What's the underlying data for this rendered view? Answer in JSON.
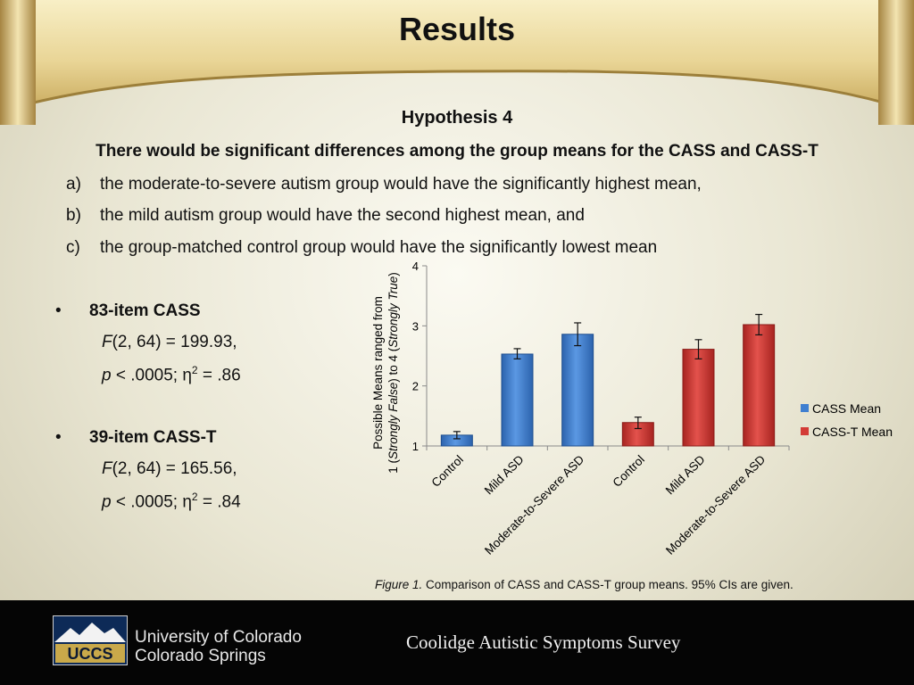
{
  "slide": {
    "title": "Results",
    "hypothesis_title": "Hypothesis 4",
    "statement": "There would be significant differences among the group means for the CASS and CASS-T",
    "items": [
      {
        "marker": "a)",
        "text": "the moderate-to-severe autism group would have the significantly highest mean,"
      },
      {
        "marker": "b)",
        "text": "the mild autism group would have the second highest mean, and"
      },
      {
        "marker": "c)",
        "text": "the group-matched control group would have the significantly lowest mean"
      }
    ]
  },
  "stats": [
    {
      "label": "83-item CASS",
      "f_letter": "F",
      "f_rest": "(2, 64) = 199.93,",
      "p_letter": "p",
      "p_rest": " < .0005; η",
      "sup": "2",
      "eta_rest": " = .86"
    },
    {
      "label": "39-item CASS-T",
      "f_letter": "F",
      "f_rest": "(2, 64) = 165.56,",
      "p_letter": "p",
      "p_rest": " < .0005; η",
      "sup": "2",
      "eta_rest": " = .84"
    }
  ],
  "chart_data": {
    "type": "bar",
    "categories": [
      "Control",
      "Mild ASD",
      "Moderate-to-Severe ASD",
      "Control",
      "Mild ASD",
      "Moderate-to-Severe ASD"
    ],
    "series": [
      {
        "name": "CASS Mean",
        "color": "#3f7fd0",
        "positions": [
          0,
          1,
          2
        ],
        "values": [
          1.18,
          2.53,
          2.86
        ],
        "ci_low": [
          1.12,
          2.45,
          2.67
        ],
        "ci_high": [
          1.24,
          2.62,
          3.05
        ]
      },
      {
        "name": "CASS-T Mean",
        "color": "#d33b36",
        "positions": [
          3,
          4,
          5
        ],
        "values": [
          1.39,
          2.61,
          3.02
        ],
        "ci_low": [
          1.29,
          2.45,
          2.85
        ],
        "ci_high": [
          1.48,
          2.77,
          3.19
        ]
      }
    ],
    "ylim": [
      1,
      4
    ],
    "yticks": [
      "1",
      "2",
      "3",
      "4"
    ],
    "ylabel_line1": "Possible Means ranged from",
    "ylabel_line2_pre": "1 (",
    "ylabel_line2_it1": "Strongly False",
    "ylabel_line2_mid": ") to 4 (",
    "ylabel_line2_it2": "Strongly True",
    "ylabel_line2_post": ")",
    "legend_position": "right",
    "grid": false
  },
  "caption": {
    "label": "Figure 1.",
    "text": " Comparison of CASS and CASS-T group means. 95% CIs are given."
  },
  "footer": {
    "logo_text": "UCCS",
    "uni_line1": "University of Colorado",
    "uni_line2": "Colorado Springs",
    "survey": "Coolidge Autistic Symptoms Survey"
  }
}
